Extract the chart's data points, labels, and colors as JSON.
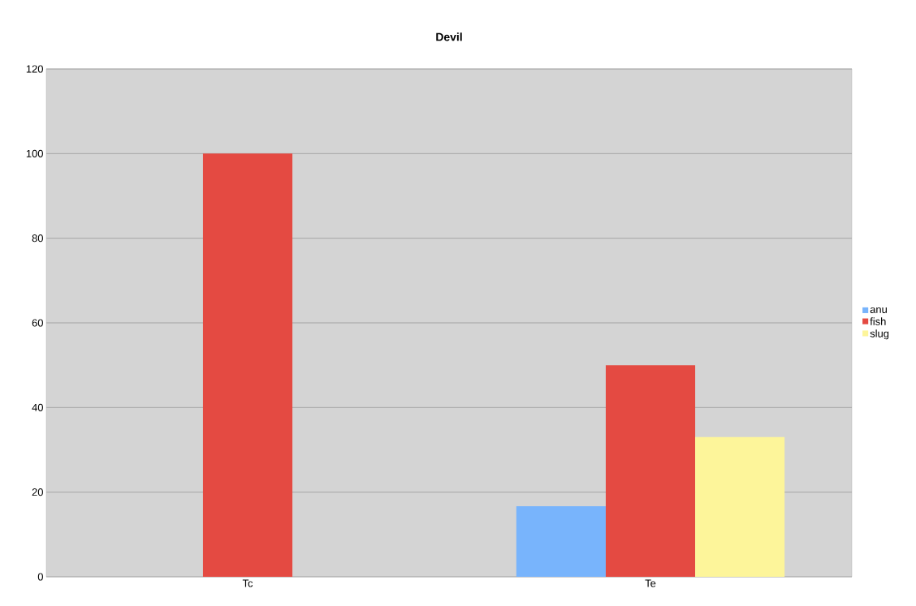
{
  "chart_data": {
    "type": "bar",
    "title": "Devil",
    "categories": [
      "Tc",
      "Te"
    ],
    "series": [
      {
        "name": "anu",
        "color": "#78b4fc",
        "values": [
          null,
          16.7
        ]
      },
      {
        "name": "fish",
        "color": "#e44a42",
        "values": [
          100,
          50
        ]
      },
      {
        "name": "slug",
        "color": "#fdf59a",
        "values": [
          null,
          33
        ]
      }
    ],
    "ylim": [
      0,
      120
    ],
    "yticks": [
      0,
      20,
      40,
      60,
      80,
      100,
      120
    ],
    "grid": "y",
    "legend": "right"
  }
}
